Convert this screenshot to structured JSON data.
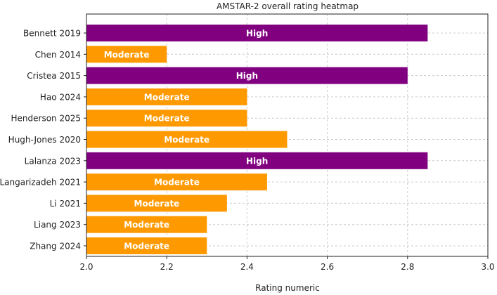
{
  "chart_data": {
    "type": "bar",
    "orientation": "horizontal",
    "title": "AMSTAR-2 overall rating heatmap",
    "xlabel": "Rating numeric",
    "ylabel": "",
    "xlim": [
      2.0,
      3.0
    ],
    "xticks": [
      "2.0",
      "2.2",
      "2.4",
      "2.6",
      "2.8",
      "3.0"
    ],
    "grid": true,
    "categories": [
      "Bennett 2019",
      "Chen 2014",
      "Cristea 2015",
      "Hao 2024",
      "Henderson 2025",
      "Hugh-Jones 2020",
      "Lalanza 2023",
      "Langarizadeh 2021",
      "Li 2021",
      "Liang 2023",
      "Zhang 2024"
    ],
    "values": [
      2.85,
      2.2,
      2.8,
      2.4,
      2.4,
      2.5,
      2.85,
      2.45,
      2.35,
      2.3,
      2.3
    ],
    "ratings": [
      "High",
      "Moderate",
      "High",
      "Moderate",
      "Moderate",
      "Moderate",
      "High",
      "Moderate",
      "Moderate",
      "Moderate",
      "Moderate"
    ],
    "colors": {
      "High": "#800080",
      "Moderate": "#ff9900"
    }
  }
}
